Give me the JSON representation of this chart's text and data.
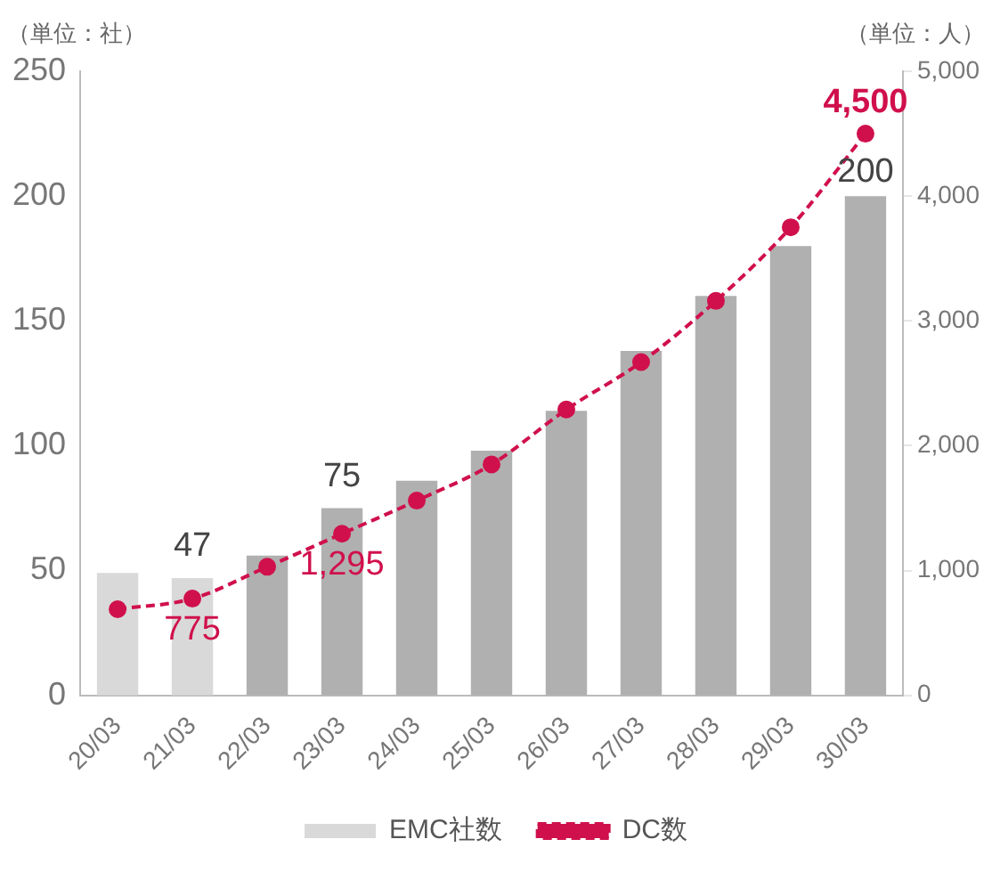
{
  "chart_data": {
    "type": "bar",
    "ylabel": "（単位：社）",
    "y2label": "（単位：人）",
    "categories": [
      "20/03",
      "21/03",
      "22/03",
      "23/03",
      "24/03",
      "25/03",
      "26/03",
      "27/03",
      "28/03",
      "29/03",
      "30/03"
    ],
    "series": [
      {
        "name": "EMC社数",
        "colors": [
          "#d9d9d9",
          "#d9d9d9",
          "#b0b0b0",
          "#b0b0b0",
          "#b0b0b0",
          "#b0b0b0",
          "#b0b0b0",
          "#b0b0b0",
          "#b0b0b0",
          "#b0b0b0",
          "#b0b0b0"
        ],
        "values": [
          49,
          47,
          56,
          75,
          86,
          98,
          114,
          138,
          160,
          180,
          200
        ],
        "value_labels": [
          null,
          "47",
          null,
          "75",
          null,
          null,
          null,
          null,
          null,
          null,
          "200"
        ]
      },
      {
        "name": "DC数",
        "type": "line",
        "axis": "y2",
        "color": "#d0104c",
        "line_style": "dashed",
        "values": [
          690,
          775,
          1030,
          1295,
          1560,
          1850,
          2290,
          2670,
          3160,
          3750,
          4500
        ],
        "value_labels": [
          null,
          "775",
          null,
          "1,295",
          null,
          null,
          null,
          null,
          null,
          null,
          "4,500"
        ]
      }
    ],
    "ylim": [
      0,
      250
    ],
    "yticks": [
      0,
      50,
      100,
      150,
      200,
      250
    ],
    "y2lim": [
      0,
      5000
    ],
    "y2ticks": [
      {
        "value": 0,
        "label": "0"
      },
      {
        "value": 1000,
        "label": "1,000"
      },
      {
        "value": 2000,
        "label": "2,000"
      },
      {
        "value": 3000,
        "label": "3,000"
      },
      {
        "value": 4000,
        "label": "4,000"
      },
      {
        "value": 5000,
        "label": "5,000"
      }
    ],
    "marker": "circle",
    "legend": "bottom"
  }
}
